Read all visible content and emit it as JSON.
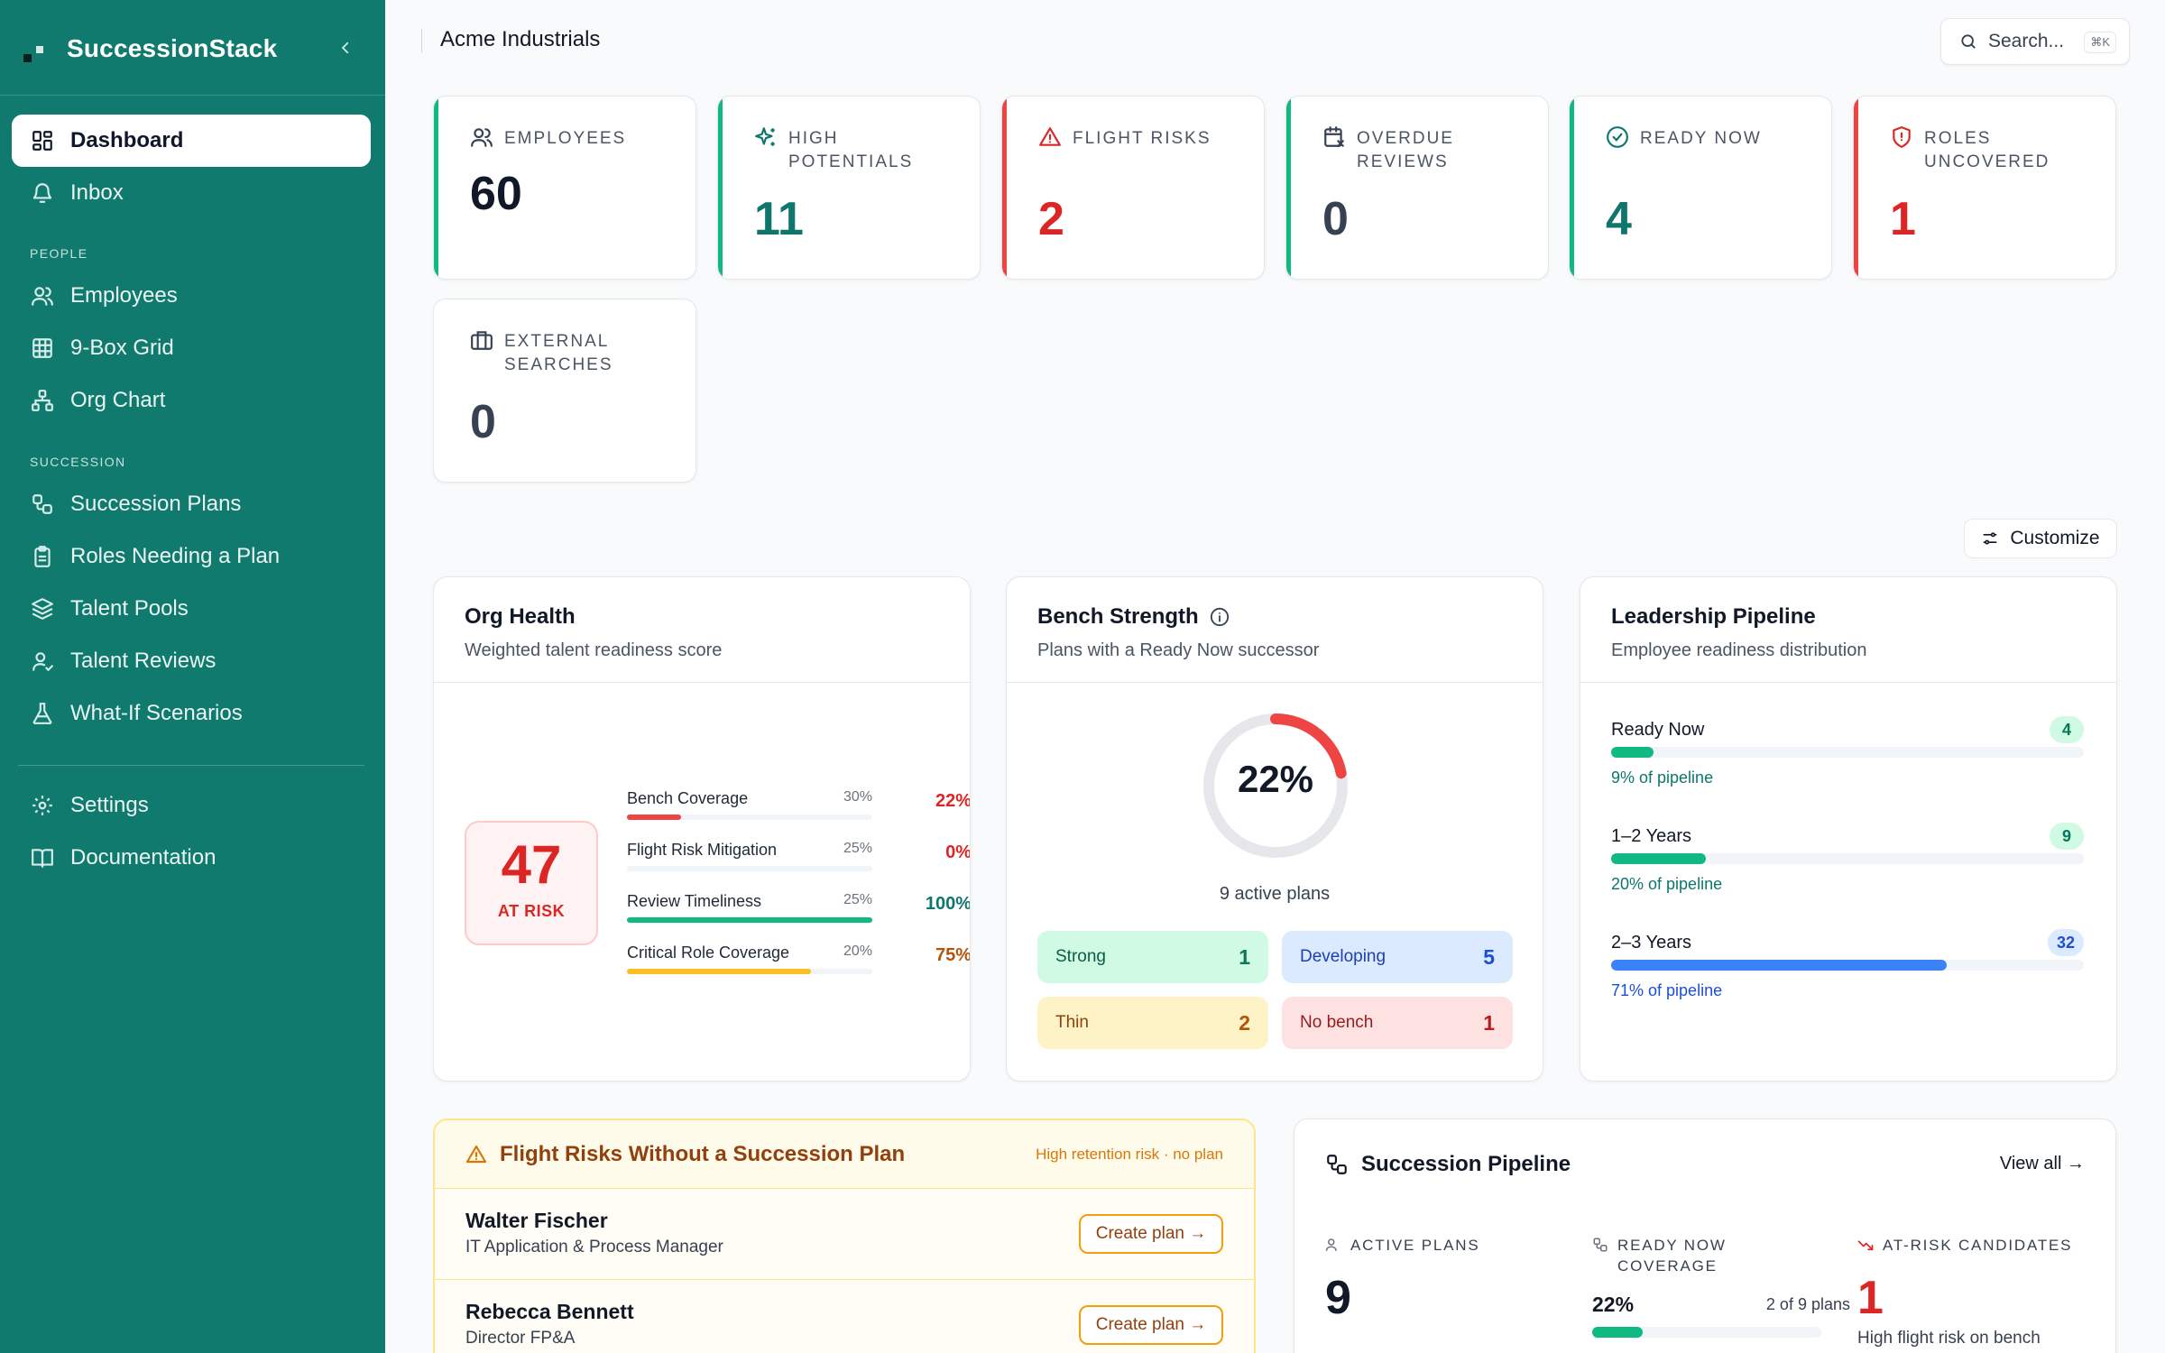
{
  "app": {
    "name": "SuccessionStack"
  },
  "sidebar": {
    "top": [
      {
        "label": "Dashboard",
        "icon": "dashboard-icon",
        "active": true
      },
      {
        "label": "Inbox",
        "icon": "bell-icon"
      }
    ],
    "people_section": "PEOPLE",
    "people": [
      {
        "label": "Employees",
        "icon": "users-icon"
      },
      {
        "label": "9-Box Grid",
        "icon": "grid-icon"
      },
      {
        "label": "Org Chart",
        "icon": "org-chart-icon"
      }
    ],
    "succession_section": "SUCCESSION",
    "succession": [
      {
        "label": "Succession Plans",
        "icon": "workflow-icon"
      },
      {
        "label": "Roles Needing a Plan",
        "icon": "clipboard-icon"
      },
      {
        "label": "Talent Pools",
        "icon": "layers-icon"
      },
      {
        "label": "Talent Reviews",
        "icon": "user-review-icon"
      },
      {
        "label": "What-If Scenarios",
        "icon": "flask-icon"
      }
    ],
    "bottom": [
      {
        "label": "Settings",
        "icon": "gear-icon"
      },
      {
        "label": "Documentation",
        "icon": "book-icon"
      }
    ]
  },
  "header": {
    "org_name": "Acme Industrials",
    "search_placeholder": "Search...",
    "search_shortcut": "⌘K"
  },
  "stats": [
    {
      "label": "EMPLOYEES",
      "value": "60",
      "accent": "#10b981",
      "value_color": "#111827"
    },
    {
      "label": "HIGH POTENTIALS",
      "value": "11",
      "accent": "#10b981",
      "value_color": "#0f766e"
    },
    {
      "label": "FLIGHT RISKS",
      "value": "2",
      "accent": "#ef4444",
      "value_color": "#dc2626"
    },
    {
      "label": "OVERDUE REVIEWS",
      "value": "0",
      "accent": "#10b981",
      "value_color": "#374151"
    },
    {
      "label": "READY NOW",
      "value": "4",
      "accent": "#10b981",
      "value_color": "#0f766e"
    },
    {
      "label": "ROLES UNCOVERED",
      "value": "1",
      "accent": "#ef4444",
      "value_color": "#dc2626"
    },
    {
      "label": "EXTERNAL SEARCHES",
      "value": "0",
      "accent": "",
      "value_color": "#374151"
    }
  ],
  "customize_label": "Customize",
  "org_health": {
    "title": "Org Health",
    "subtitle": "Weighted talent readiness score",
    "score": "47",
    "status": "AT RISK",
    "metrics": [
      {
        "name": "Bench Coverage",
        "weight": "30%",
        "value": "22%",
        "fill": 0.22,
        "color": "#ef4444",
        "value_color": "#dc2626"
      },
      {
        "name": "Flight Risk Mitigation",
        "weight": "25%",
        "value": "0%",
        "fill": 0.0,
        "color": "#ef4444",
        "value_color": "#dc2626"
      },
      {
        "name": "Review Timeliness",
        "weight": "25%",
        "value": "100%",
        "fill": 1.0,
        "color": "#10b981",
        "value_color": "#0f766e"
      },
      {
        "name": "Critical Role Coverage",
        "weight": "20%",
        "value": "75%",
        "fill": 0.75,
        "color": "#fbbf24",
        "value_color": "#b45309"
      }
    ]
  },
  "bench_strength": {
    "title": "Bench Strength",
    "subtitle": "Plans with a Ready Now successor",
    "percent_label": "22%",
    "percent": 0.22,
    "active_plans": "9 active plans",
    "chips": [
      {
        "label": "Strong",
        "value": "1",
        "bg": "#d1fae5",
        "fg": "#065f46",
        "num": "#047857"
      },
      {
        "label": "Developing",
        "value": "5",
        "bg": "#dbeafe",
        "fg": "#1e40af",
        "num": "#1d4ed8"
      },
      {
        "label": "Thin",
        "value": "2",
        "bg": "#fef3c7",
        "fg": "#92400e",
        "num": "#b45309"
      },
      {
        "label": "No bench",
        "value": "1",
        "bg": "#fee2e2",
        "fg": "#991b1b",
        "num": "#b91c1c"
      }
    ]
  },
  "leadership_pipeline": {
    "title": "Leadership Pipeline",
    "subtitle": "Employee readiness distribution",
    "rows": [
      {
        "label": "Ready Now",
        "count": "4",
        "pct_label": "9% of pipeline",
        "fill": 0.09,
        "color": "#10b981",
        "badge_bg": "#d1fae5",
        "badge_fg": "#047857",
        "pct_color": "#0f766e"
      },
      {
        "label": "1–2 Years",
        "count": "9",
        "pct_label": "20% of pipeline",
        "fill": 0.2,
        "color": "#10b981",
        "badge_bg": "#d1fae5",
        "badge_fg": "#047857",
        "pct_color": "#0f766e"
      },
      {
        "label": "2–3 Years",
        "count": "32",
        "pct_label": "71% of pipeline",
        "fill": 0.71,
        "color": "#3b82f6",
        "badge_bg": "#dbeafe",
        "badge_fg": "#1d4ed8",
        "pct_color": "#1d4ed8"
      }
    ]
  },
  "flight_risks": {
    "title": "Flight Risks Without a Succession Plan",
    "note": "High retention risk · no plan",
    "button_label": "Create plan →",
    "people": [
      {
        "name": "Walter Fischer",
        "role": "IT Application & Process Manager"
      },
      {
        "name": "Rebecca Bennett",
        "role": "Director FP&A"
      }
    ]
  },
  "succession_pipeline": {
    "title": "Succession Pipeline",
    "view_all": "View all →",
    "active_plans_label": "ACTIVE PLANS",
    "active_plans_value": "9",
    "coverage_label": "READY NOW COVERAGE",
    "coverage_pct": "22%",
    "coverage_detail": "2 of 9 plans",
    "coverage_fill": 0.22,
    "at_risk_label": "AT-RISK CANDIDATES",
    "at_risk_value": "1",
    "at_risk_note": "High flight risk on bench"
  }
}
